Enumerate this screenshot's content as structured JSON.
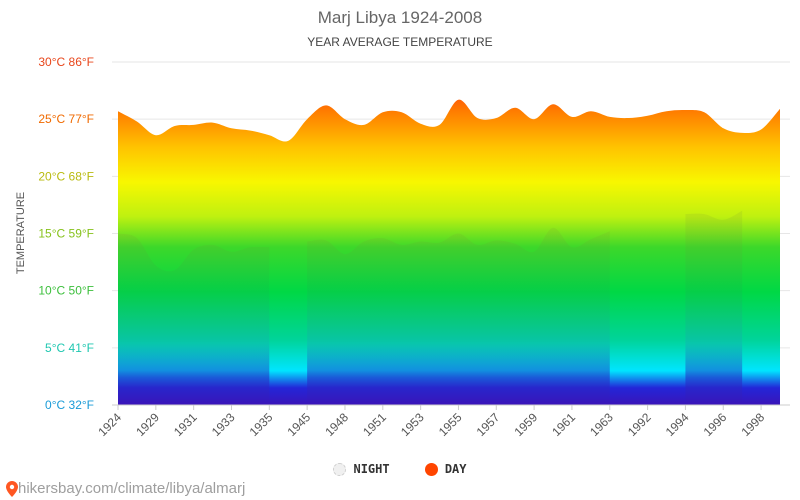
{
  "chart_data": {
    "type": "area",
    "title": "Marj Libya 1924-2008",
    "subtitle": "YEAR AVERAGE TEMPERATURE",
    "ylabel": "TEMPERATURE",
    "ylim": [
      0,
      30
    ],
    "yticks": [
      {
        "value": 0,
        "label": "0°C 32°F",
        "color": "#1a9bd7"
      },
      {
        "value": 5,
        "label": "5°C 41°F",
        "color": "#1fc7b0"
      },
      {
        "value": 10,
        "label": "10°C 50°F",
        "color": "#3cbf3c"
      },
      {
        "value": 15,
        "label": "15°C 59°F",
        "color": "#86c21b"
      },
      {
        "value": 20,
        "label": "20°C 68°F",
        "color": "#b9bb10"
      },
      {
        "value": 25,
        "label": "25°C 77°F",
        "color": "#f06a00"
      },
      {
        "value": 30,
        "label": "30°C 86°F",
        "color": "#e8461b"
      }
    ],
    "x": [
      "1924",
      "1927",
      "1929",
      "1930",
      "1931",
      "1932",
      "1933",
      "1934",
      "1935",
      "1944",
      "1945",
      "1947",
      "1948",
      "1950",
      "1951",
      "1952",
      "1953",
      "1954",
      "1955",
      "1956",
      "1957",
      "1958",
      "1959",
      "1960",
      "1961",
      "1962",
      "1963",
      "1991",
      "1992",
      "1993",
      "1994",
      "1995",
      "1996",
      "1997",
      "1998",
      "2008"
    ],
    "xtick_labels": [
      "1924",
      "1929",
      "1931",
      "1933",
      "1935",
      "1945",
      "1948",
      "1951",
      "1953",
      "1955",
      "1957",
      "1959",
      "1961",
      "1963",
      "1992",
      "1994",
      "1996",
      "1998"
    ],
    "series": [
      {
        "name": "NIGHT",
        "color": "#f2f2f2",
        "values": [
          15.0,
          14.6,
          12.2,
          11.8,
          13.6,
          14.0,
          13.4,
          13.8,
          13.8,
          null,
          14.3,
          14.4,
          13.2,
          14.3,
          14.6,
          14.0,
          14.3,
          14.2,
          15.0,
          14.0,
          14.4,
          14.1,
          13.4,
          15.5,
          13.8,
          14.5,
          15.2,
          null,
          null,
          null,
          16.7,
          16.7,
          16.2,
          17.0,
          null,
          null
        ]
      },
      {
        "name": "DAY",
        "color": "#ff4500",
        "values": [
          25.7,
          24.8,
          23.6,
          24.4,
          24.5,
          24.7,
          24.2,
          24.0,
          23.6,
          23.1,
          25.0,
          26.2,
          25.0,
          24.5,
          25.6,
          25.6,
          24.6,
          24.5,
          26.7,
          25.1,
          25.1,
          26.0,
          25.0,
          26.3,
          25.2,
          25.7,
          25.2,
          25.1,
          25.3,
          25.7,
          25.8,
          25.6,
          24.2,
          23.8,
          24.1,
          25.9
        ]
      }
    ],
    "grid": true,
    "legend_position": "bottom-center"
  },
  "watermark": "hikersbay.com/climate/libya/almarj",
  "pin_icon_color": "#ff5722"
}
